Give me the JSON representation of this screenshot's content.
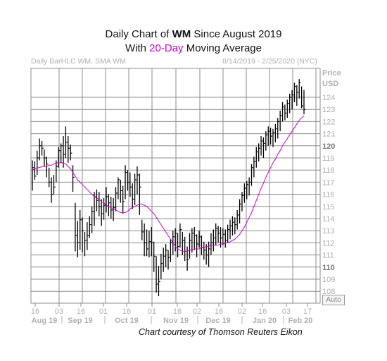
{
  "title": {
    "line1_prefix": "Daily Chart of ",
    "line1_symbol": "WM",
    "line1_suffix": " Since August 2019",
    "line2_prefix": "With ",
    "line2_highlight": "20-Day",
    "line2_suffix": " Moving Average"
  },
  "header": {
    "left": "Daily BarHLC WM, SMA WM",
    "right": "8/14/2019 - 2/25/2020 (NYC)"
  },
  "auto_button": "Auto",
  "credit": "Chart courtesy of Thomson Reuters Eikon",
  "colors": {
    "bars": "#000000",
    "sma": "#cc00cc",
    "grid": "#8c8c8c",
    "axis_text": "#b0b0b0"
  },
  "chart_data": {
    "type": "bar",
    "ylabel": "Price",
    "y_unit": "USD",
    "ylim": [
      107.2,
      125.6
    ],
    "grid": true,
    "y_ticks": [
      124,
      123,
      122,
      121,
      120,
      119,
      118,
      117,
      116,
      115,
      114,
      113,
      112,
      111,
      110,
      109,
      108
    ],
    "y_ticks_bold": [
      120,
      110
    ],
    "x_day_ticks": [
      "16",
      "03",
      "16",
      "01",
      "16",
      "01",
      "18",
      "02",
      "16",
      "02",
      "16",
      "03",
      "17"
    ],
    "x_month_labels": [
      "Aug 19",
      "Sep 19",
      "Oct 19",
      "Nov 19",
      "Dec 19",
      "Jan 20",
      "Feb 20"
    ],
    "series": [
      {
        "name": "WM",
        "kind": "hlc_bars",
        "values": [
          [
            116.3,
            118.8,
            118.2
          ],
          [
            117.2,
            118.7,
            117.5
          ],
          [
            117.6,
            119.6,
            119.0
          ],
          [
            118.8,
            120.6,
            120.0
          ],
          [
            119.2,
            120.4,
            119.8
          ],
          [
            118.3,
            119.7,
            119.0
          ],
          [
            117.4,
            119.1,
            118.5
          ],
          [
            116.6,
            118.2,
            117.0
          ],
          [
            115.3,
            117.4,
            116.0
          ],
          [
            116.0,
            117.6,
            116.6
          ],
          [
            117.0,
            118.8,
            118.3
          ],
          [
            118.2,
            119.9,
            119.6
          ],
          [
            118.6,
            120.2,
            120.0
          ],
          [
            118.2,
            120.8,
            119.3
          ],
          [
            119.0,
            121.6,
            120.3
          ],
          [
            118.6,
            120.8,
            119.8
          ],
          [
            118.8,
            120.1,
            119.4
          ],
          [
            116.2,
            118.4,
            117.4
          ],
          [
            111.3,
            115.3,
            112.6
          ],
          [
            110.8,
            113.8,
            112.0
          ],
          [
            111.4,
            114.7,
            113.9
          ],
          [
            111.2,
            114.1,
            113.0
          ],
          [
            110.9,
            112.9,
            112.2
          ],
          [
            111.4,
            113.7,
            112.6
          ],
          [
            112.4,
            114.2,
            113.5
          ],
          [
            112.8,
            115.0,
            114.6
          ],
          [
            113.4,
            116.2,
            115.8
          ],
          [
            114.6,
            116.4,
            115.5
          ],
          [
            114.2,
            116.2,
            115.0
          ],
          [
            113.4,
            115.6,
            114.4
          ],
          [
            113.9,
            115.7,
            115.1
          ],
          [
            114.5,
            116.6,
            115.8
          ],
          [
            114.2,
            116.0,
            115.3
          ],
          [
            114.0,
            115.8,
            114.7
          ],
          [
            113.8,
            115.7,
            114.9
          ],
          [
            114.6,
            116.6,
            116.1
          ],
          [
            115.6,
            117.4,
            117.2
          ],
          [
            115.3,
            117.2,
            116.3
          ],
          [
            114.4,
            116.7,
            115.4
          ],
          [
            115.6,
            118.4,
            117.8
          ],
          [
            116.3,
            118.0,
            117.0
          ],
          [
            115.8,
            117.8,
            116.6
          ],
          [
            114.8,
            116.9,
            115.6
          ],
          [
            115.1,
            117.7,
            117.2
          ],
          [
            116.0,
            118.3,
            117.6
          ],
          [
            114.3,
            117.7,
            116.6
          ],
          [
            112.2,
            113.9,
            112.9
          ],
          [
            110.9,
            113.6,
            112.0
          ],
          [
            110.9,
            113.1,
            111.5
          ],
          [
            110.8,
            113.0,
            112.1
          ],
          [
            110.9,
            113.3,
            112.0
          ],
          [
            109.6,
            112.1,
            110.9
          ],
          [
            107.9,
            110.9,
            108.6
          ],
          [
            107.6,
            110.1,
            108.8
          ],
          [
            109.0,
            111.1,
            110.3
          ],
          [
            109.6,
            111.6,
            110.9
          ],
          [
            110.0,
            111.9,
            111.4
          ],
          [
            109.8,
            111.4,
            110.8
          ],
          [
            110.4,
            112.3,
            112.0
          ],
          [
            111.0,
            113.0,
            112.5
          ],
          [
            111.3,
            113.2,
            112.8
          ],
          [
            110.8,
            112.8,
            111.7
          ],
          [
            111.6,
            113.6,
            113.1
          ],
          [
            111.0,
            112.9,
            112.2
          ],
          [
            110.5,
            112.5,
            111.3
          ],
          [
            109.7,
            111.7,
            110.6
          ],
          [
            110.7,
            112.8,
            112.2
          ],
          [
            111.2,
            113.2,
            112.8
          ],
          [
            111.4,
            113.3,
            112.6
          ],
          [
            110.8,
            112.7,
            111.9
          ],
          [
            111.6,
            113.0,
            112.5
          ],
          [
            111.0,
            112.6,
            111.6
          ],
          [
            110.6,
            112.1,
            111.4
          ],
          [
            110.2,
            111.9,
            111.0
          ],
          [
            110.0,
            112.1,
            111.5
          ],
          [
            111.0,
            112.8,
            112.0
          ],
          [
            111.3,
            113.1,
            112.4
          ],
          [
            111.8,
            113.6,
            113.2
          ],
          [
            112.0,
            113.4,
            112.8
          ],
          [
            111.6,
            113.3,
            112.4
          ],
          [
            111.8,
            113.2,
            112.7
          ],
          [
            111.6,
            113.1,
            112.2
          ],
          [
            112.0,
            113.5,
            113.1
          ],
          [
            112.3,
            113.9,
            113.4
          ],
          [
            112.6,
            114.2,
            113.7
          ],
          [
            112.7,
            114.1,
            113.5
          ],
          [
            113.1,
            114.7,
            114.3
          ],
          [
            113.6,
            115.6,
            115.2
          ],
          [
            114.6,
            116.2,
            115.9
          ],
          [
            115.3,
            116.9,
            116.5
          ],
          [
            115.6,
            117.1,
            116.8
          ],
          [
            115.9,
            117.4,
            117.0
          ],
          [
            116.7,
            118.5,
            118.2
          ],
          [
            117.4,
            119.1,
            118.7
          ],
          [
            118.2,
            119.9,
            119.5
          ],
          [
            118.7,
            120.2,
            119.8
          ],
          [
            119.2,
            120.8,
            120.4
          ],
          [
            119.0,
            120.7,
            120.2
          ],
          [
            119.6,
            121.2,
            120.9
          ],
          [
            120.0,
            121.6,
            121.2
          ],
          [
            120.1,
            121.5,
            120.8
          ],
          [
            119.9,
            121.4,
            121.1
          ],
          [
            120.3,
            121.8,
            121.4
          ],
          [
            120.6,
            122.3,
            122.0
          ],
          [
            121.2,
            122.9,
            122.5
          ],
          [
            122.0,
            123.6,
            123.2
          ],
          [
            122.1,
            123.4,
            122.7
          ],
          [
            122.3,
            123.8,
            123.5
          ],
          [
            122.7,
            124.3,
            124.0
          ],
          [
            123.0,
            124.6,
            124.2
          ],
          [
            123.6,
            125.2,
            124.9
          ],
          [
            123.3,
            125.0,
            124.4
          ],
          [
            123.9,
            125.5,
            125.2
          ],
          [
            123.1,
            124.9,
            123.3
          ],
          [
            122.6,
            124.6,
            123.0
          ]
        ]
      },
      {
        "name": "SMA 20",
        "kind": "line",
        "values": [
          118.0,
          118.1,
          118.2,
          118.2,
          118.3,
          118.3,
          118.3,
          118.4,
          118.4,
          118.5,
          118.6,
          118.6,
          118.6,
          118.6,
          118.5,
          118.3,
          118.1,
          117.8,
          117.5,
          117.2,
          117.0,
          116.8,
          116.6,
          116.4,
          116.2,
          116.0,
          115.8,
          115.7,
          115.6,
          115.4,
          115.3,
          115.1,
          115.0,
          114.9,
          114.8,
          114.7,
          114.6,
          114.5,
          114.5,
          114.5,
          114.6,
          114.8,
          114.9,
          115.0,
          115.1,
          115.2,
          115.2,
          115.1,
          115.0,
          114.8,
          114.6,
          114.4,
          114.1,
          113.8,
          113.5,
          113.2,
          112.9,
          112.6,
          112.3,
          112.0,
          111.7,
          111.5,
          111.4,
          111.3,
          111.3,
          111.3,
          111.4,
          111.4,
          111.5,
          111.5,
          111.5,
          111.6,
          111.6,
          111.7,
          111.7,
          111.8,
          111.8,
          111.8,
          111.8,
          111.9,
          111.9,
          112.0,
          112.0,
          112.1,
          112.2,
          112.3,
          112.5,
          112.7,
          113.0,
          113.3,
          113.7,
          114.1,
          114.5,
          115.0,
          115.5,
          116.0,
          116.5,
          116.9,
          117.4,
          117.8,
          118.2,
          118.6,
          118.9,
          119.3,
          119.6,
          120.0,
          120.3,
          120.6,
          120.9,
          121.2,
          121.5,
          121.8,
          122.1,
          122.3,
          122.5
        ]
      }
    ]
  }
}
